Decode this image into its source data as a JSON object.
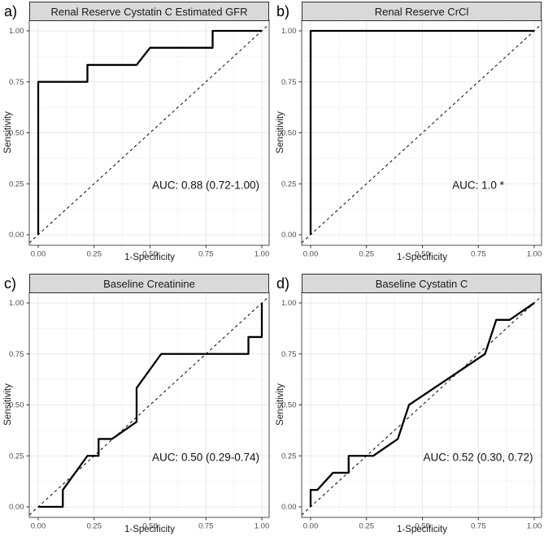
{
  "colors": {
    "background": "#ffffff",
    "curve": "#000000",
    "reference": "#1a1a1a",
    "strip_fill": "#d9d9d9",
    "strip_border": "#2e2e2e",
    "panel_border": "#4d4d4d",
    "grid_major": "#e9e9e9",
    "grid_minor": "#f4f4f4",
    "tick": "#333333",
    "tick_label": "#4d4d4d",
    "text": "#1a1a1a"
  },
  "chart_data": [
    {
      "type": "line",
      "panel_label": "a)",
      "title": "Renal Reserve Cystatin C Estimated GFR",
      "xlabel": "1-Specificity",
      "ylabel": "Sensitivity",
      "auc_label": "AUC: 0.88 (0.72-1.00)",
      "xlim": [
        0,
        1
      ],
      "ylim": [
        0,
        1
      ],
      "x_tick_values": [
        0,
        0.25,
        0.5,
        0.75,
        1
      ],
      "x_tick_labels": [
        "0.00",
        "0.25",
        "0.50",
        "0.75",
        "1.00"
      ],
      "y_tick_values": [
        0,
        0.25,
        0.5,
        0.75,
        1
      ],
      "y_tick_labels": [
        "0.00",
        "0.25",
        "0.50",
        "0.75",
        "1.00"
      ],
      "minor_tick_values": [
        0.125,
        0.375,
        0.625,
        0.875
      ],
      "grid": "major+minor",
      "legend": "none",
      "reference_line": {
        "style": "dashed",
        "from": [
          0,
          0
        ],
        "to": [
          1,
          1
        ]
      },
      "series": [
        {
          "name": "ROC curve",
          "points": [
            [
              0,
              0
            ],
            [
              0,
              0.75
            ],
            [
              0.22,
              0.75
            ],
            [
              0.22,
              0.833
            ],
            [
              0.44,
              0.833
            ],
            [
              0.5,
              0.917
            ],
            [
              0.78,
              0.917
            ],
            [
              0.78,
              1
            ],
            [
              1,
              1
            ]
          ]
        }
      ]
    },
    {
      "type": "line",
      "panel_label": "b)",
      "title": "Renal Reserve CrCl",
      "xlabel": "1-Specificity",
      "ylabel": "Sensitivity",
      "auc_label": "AUC: 1.0 *",
      "xlim": [
        0,
        1
      ],
      "ylim": [
        0,
        1
      ],
      "x_tick_values": [
        0,
        0.25,
        0.5,
        0.75,
        1
      ],
      "x_tick_labels": [
        "0.00",
        "0.25",
        "0.50",
        "0.75",
        "1.00"
      ],
      "y_tick_values": [
        0,
        0.25,
        0.5,
        0.75,
        1
      ],
      "y_tick_labels": [
        "0.00",
        "0.25",
        "0.50",
        "0.75",
        "1.00"
      ],
      "minor_tick_values": [
        0.125,
        0.375,
        0.625,
        0.875
      ],
      "grid": "major+minor",
      "legend": "none",
      "reference_line": {
        "style": "dashed",
        "from": [
          0,
          0
        ],
        "to": [
          1,
          1
        ]
      },
      "series": [
        {
          "name": "ROC curve",
          "points": [
            [
              0,
              0
            ],
            [
              0,
              1
            ],
            [
              1,
              1
            ]
          ]
        }
      ]
    },
    {
      "type": "line",
      "panel_label": "c)",
      "title": "Baseline Creatinine",
      "xlabel": "1-Specificity",
      "ylabel": "Sensitivity",
      "auc_label": "AUC: 0.50 (0.29-0.74)",
      "xlim": [
        0,
        1
      ],
      "ylim": [
        0,
        1
      ],
      "x_tick_values": [
        0,
        0.25,
        0.5,
        0.75,
        1
      ],
      "x_tick_labels": [
        "0.00",
        "0.25",
        "0.50",
        "0.75",
        "1.00"
      ],
      "y_tick_values": [
        0,
        0.25,
        0.5,
        0.75,
        1
      ],
      "y_tick_labels": [
        "0.00",
        "0.25",
        "0.50",
        "0.75",
        "1.00"
      ],
      "minor_tick_values": [
        0.125,
        0.375,
        0.625,
        0.875
      ],
      "grid": "major+minor",
      "legend": "none",
      "reference_line": {
        "style": "dashed",
        "from": [
          0,
          0
        ],
        "to": [
          1,
          1
        ]
      },
      "series": [
        {
          "name": "ROC curve",
          "points": [
            [
              0,
              0
            ],
            [
              0.11,
              0
            ],
            [
              0.11,
              0.083
            ],
            [
              0.22,
              0.25
            ],
            [
              0.27,
              0.25
            ],
            [
              0.27,
              0.333
            ],
            [
              0.33,
              0.333
            ],
            [
              0.44,
              0.417
            ],
            [
              0.44,
              0.583
            ],
            [
              0.55,
              0.75
            ],
            [
              0.94,
              0.75
            ],
            [
              0.94,
              0.833
            ],
            [
              1,
              0.833
            ],
            [
              1,
              1
            ]
          ]
        }
      ]
    },
    {
      "type": "line",
      "panel_label": "d)",
      "title": "Baseline Cystatin C",
      "xlabel": "1-Specificity",
      "ylabel": "Sensitivity",
      "auc_label": "AUC: 0.52 (0.30, 0.72)",
      "xlim": [
        0,
        1
      ],
      "ylim": [
        0,
        1
      ],
      "x_tick_values": [
        0,
        0.25,
        0.5,
        0.75,
        1
      ],
      "x_tick_labels": [
        "0.00",
        "0.25",
        "0.50",
        "0.75",
        "1.00"
      ],
      "y_tick_values": [
        0,
        0.25,
        0.5,
        0.75,
        1
      ],
      "y_tick_labels": [
        "0.00",
        "0.25",
        "0.50",
        "0.75",
        "1.00"
      ],
      "minor_tick_values": [
        0.125,
        0.375,
        0.625,
        0.875
      ],
      "grid": "major+minor",
      "legend": "none",
      "reference_line": {
        "style": "dashed",
        "from": [
          0,
          0
        ],
        "to": [
          1,
          1
        ]
      },
      "series": [
        {
          "name": "ROC curve",
          "points": [
            [
              0,
              0
            ],
            [
              0,
              0.083
            ],
            [
              0.03,
              0.083
            ],
            [
              0.1,
              0.167
            ],
            [
              0.17,
              0.167
            ],
            [
              0.17,
              0.25
            ],
            [
              0.28,
              0.25
            ],
            [
              0.39,
              0.333
            ],
            [
              0.44,
              0.5
            ],
            [
              0.78,
              0.75
            ],
            [
              0.83,
              0.917
            ],
            [
              0.89,
              0.917
            ],
            [
              1,
              1
            ]
          ]
        }
      ]
    }
  ]
}
